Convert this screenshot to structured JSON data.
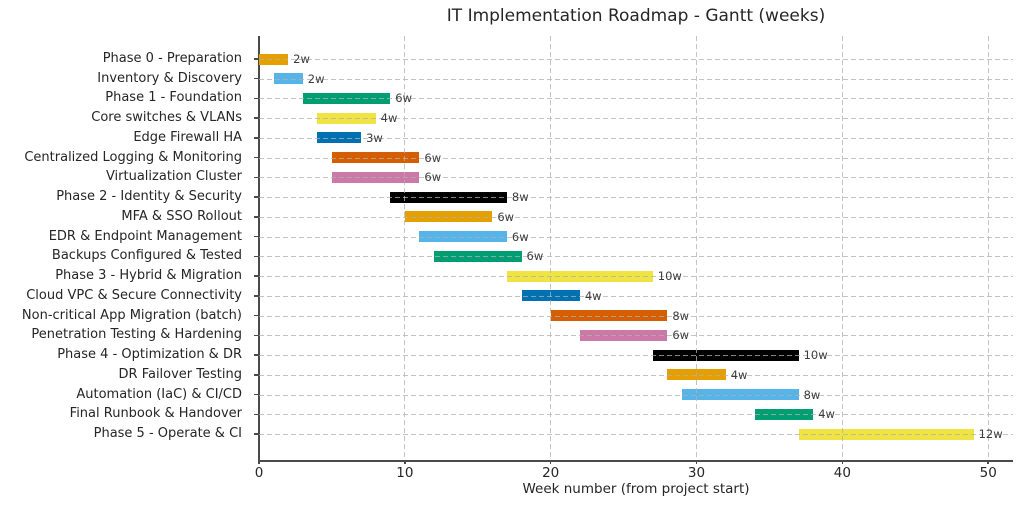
{
  "figure": {
    "background": "#ffffff",
    "text_color": "#262626",
    "spine_color": "#4a4a4a",
    "grid_color": "#b0b0b0"
  },
  "chart_data": {
    "type": "bar",
    "subtype": "gantt_horizontal",
    "title": "IT Implementation Roadmap - Gantt (weeks)",
    "xlabel": "Week number (from project start)",
    "x_ticks": [
      0,
      10,
      20,
      30,
      40,
      50
    ],
    "xlim": [
      0,
      51.7
    ],
    "unit": "weeks",
    "grid": {
      "style": "dashed",
      "axes": "both",
      "drawn_above_bars": true
    },
    "legend": "none",
    "tasks": [
      {
        "label": "Phase 0 - Preparation",
        "start": 0,
        "end": 2,
        "duration": 2,
        "annotation": "2w",
        "color": "#E69F00"
      },
      {
        "label": "Inventory & Discovery",
        "start": 1,
        "end": 3,
        "duration": 2,
        "annotation": "2w",
        "color": "#56B4E9"
      },
      {
        "label": "Phase 1 - Foundation",
        "start": 3,
        "end": 9,
        "duration": 6,
        "annotation": "6w",
        "color": "#009E73"
      },
      {
        "label": "Core switches & VLANs",
        "start": 4,
        "end": 8,
        "duration": 4,
        "annotation": "4w",
        "color": "#F0E442"
      },
      {
        "label": "Edge Firewall HA",
        "start": 4,
        "end": 7,
        "duration": 3,
        "annotation": "3w",
        "color": "#0072B2"
      },
      {
        "label": "Centralized Logging & Monitoring",
        "start": 5,
        "end": 11,
        "duration": 6,
        "annotation": "6w",
        "color": "#D55E00"
      },
      {
        "label": "Virtualization Cluster",
        "start": 5,
        "end": 11,
        "duration": 6,
        "annotation": "6w",
        "color": "#CC79A7"
      },
      {
        "label": "Phase 2 - Identity & Security",
        "start": 9,
        "end": 17,
        "duration": 8,
        "annotation": "8w",
        "color": "#000000"
      },
      {
        "label": "MFA & SSO Rollout",
        "start": 10,
        "end": 16,
        "duration": 6,
        "annotation": "6w",
        "color": "#E69F00"
      },
      {
        "label": "EDR & Endpoint Management",
        "start": 11,
        "end": 17,
        "duration": 6,
        "annotation": "6w",
        "color": "#56B4E9"
      },
      {
        "label": "Backups Configured & Tested",
        "start": 12,
        "end": 18,
        "duration": 6,
        "annotation": "6w",
        "color": "#009E73"
      },
      {
        "label": "Phase 3 - Hybrid & Migration",
        "start": 17,
        "end": 27,
        "duration": 10,
        "annotation": "10w",
        "color": "#F0E442"
      },
      {
        "label": "Cloud VPC & Secure Connectivity",
        "start": 18,
        "end": 22,
        "duration": 4,
        "annotation": "4w",
        "color": "#0072B2"
      },
      {
        "label": "Non-critical App Migration (batch)",
        "start": 20,
        "end": 28,
        "duration": 8,
        "annotation": "8w",
        "color": "#D55E00"
      },
      {
        "label": "Penetration Testing & Hardening",
        "start": 22,
        "end": 28,
        "duration": 6,
        "annotation": "6w",
        "color": "#CC79A7"
      },
      {
        "label": "Phase 4 - Optimization & DR",
        "start": 27,
        "end": 37,
        "duration": 10,
        "annotation": "10w",
        "color": "#000000"
      },
      {
        "label": "DR Failover Testing",
        "start": 28,
        "end": 32,
        "duration": 4,
        "annotation": "4w",
        "color": "#E69F00"
      },
      {
        "label": "Automation (IaC) & CI/CD",
        "start": 29,
        "end": 37,
        "duration": 8,
        "annotation": "8w",
        "color": "#56B4E9"
      },
      {
        "label": "Final Runbook & Handover",
        "start": 34,
        "end": 38,
        "duration": 4,
        "annotation": "4w",
        "color": "#009E73"
      },
      {
        "label": "Phase 5 - Operate & CI",
        "start": 37,
        "end": 49,
        "duration": 12,
        "annotation": "12w",
        "color": "#F0E442"
      }
    ]
  }
}
